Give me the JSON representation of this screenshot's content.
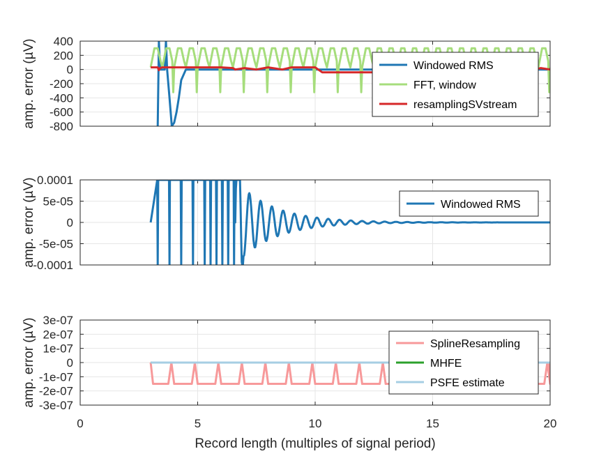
{
  "chart_data": [
    {
      "type": "line",
      "ylabel": "amp. error (µV)",
      "xlim": [
        0,
        20
      ],
      "ylim": [
        -800,
        400
      ],
      "yticks": [
        400,
        200,
        0,
        -200,
        -400,
        -600,
        -800
      ],
      "ytick_labels": [
        "400",
        "200",
        "0",
        "-200",
        "-400",
        "-600",
        "-800"
      ],
      "grid": true,
      "legend_location": "top-right",
      "series": [
        {
          "name": "Windowed RMS",
          "color": "#1f77b4",
          "x": [
            3.3,
            3.35,
            3.4,
            3.6,
            3.65,
            3.7,
            3.8,
            3.9,
            4.0,
            4.1,
            4.2,
            4.3,
            4.5,
            5,
            6,
            8,
            10,
            20
          ],
          "y": [
            -800,
            400,
            0,
            0,
            400,
            0,
            -400,
            -800,
            -750,
            -600,
            -400,
            -150,
            0,
            0,
            0,
            0,
            0,
            0
          ]
        },
        {
          "name": "FFT, window",
          "color": "#a6dd7c",
          "description": "periodic oscillation between about -320 and 310 over record lengths 3 to 20"
        },
        {
          "name": "resamplingSVstream",
          "color": "#d62728",
          "x": [
            3.0,
            3.3,
            3.35,
            3.4,
            3.5,
            4.0,
            5.0,
            6.0,
            6.5,
            6.6,
            7.0,
            7.5,
            8.0,
            8.6,
            9.0,
            10.0,
            10.3,
            11.0,
            11.5,
            12.0,
            13.0,
            14.0,
            15.0,
            16.0,
            17.0,
            18.0,
            19.0,
            19.6,
            20.0
          ],
          "y": [
            30,
            30,
            -10,
            20,
            30,
            30,
            30,
            30,
            20,
            0,
            20,
            0,
            30,
            0,
            30,
            30,
            -40,
            -40,
            -40,
            -40,
            -40,
            -40,
            -40,
            -40,
            -40,
            -40,
            -40,
            20,
            0
          ]
        }
      ]
    },
    {
      "type": "line",
      "ylabel": "amp. error (µV)",
      "xlim": [
        0,
        20
      ],
      "ylim": [
        -0.0001,
        0.0001
      ],
      "yticks": [
        0.0001,
        5e-05,
        0,
        -5e-05,
        -0.0001
      ],
      "ytick_labels": [
        "0.0001",
        "5e-05",
        "0",
        "-5e-05",
        "-0.0001"
      ],
      "grid": true,
      "legend_location": "top-right",
      "series": [
        {
          "name": "Windowed RMS",
          "color": "#1f77b4",
          "description": "full-scale spikes near x = 3.3, 3.8, 4.3, 4.8, 5.3 to 6.9, then a decaying oscillation that settles to 0 by about x = 14"
        }
      ]
    },
    {
      "type": "line",
      "xlabel": "Record length (multiples of signal period)",
      "ylabel": "amp. error (µV)",
      "xlim": [
        0,
        20
      ],
      "ylim": [
        -3e-07,
        3e-07
      ],
      "xticks": [
        0,
        5,
        10,
        15,
        20
      ],
      "xtick_labels": [
        "0",
        "5",
        "10",
        "15",
        "20"
      ],
      "yticks": [
        3e-07,
        2e-07,
        1e-07,
        0,
        -1e-07,
        -2e-07,
        -3e-07
      ],
      "ytick_labels": [
        "3e-07",
        "2e-07",
        "1e-07",
        "0",
        "-1e-07",
        "-2e-07",
        "-3e-07"
      ],
      "grid": true,
      "legend_location": "top-right",
      "series": [
        {
          "name": "SplineResampling",
          "color": "#f7999a",
          "description": "sits near -1.5e-07 with brief periodic returns to 0 roughly every record length"
        },
        {
          "name": "MHFE",
          "color": "#2ca02c",
          "x": [
            3,
            20
          ],
          "y": [
            0,
            0
          ]
        },
        {
          "name": "PSFE estimate",
          "color": "#a6cee3",
          "x": [
            3,
            20
          ],
          "y": [
            0,
            0
          ]
        }
      ]
    }
  ]
}
